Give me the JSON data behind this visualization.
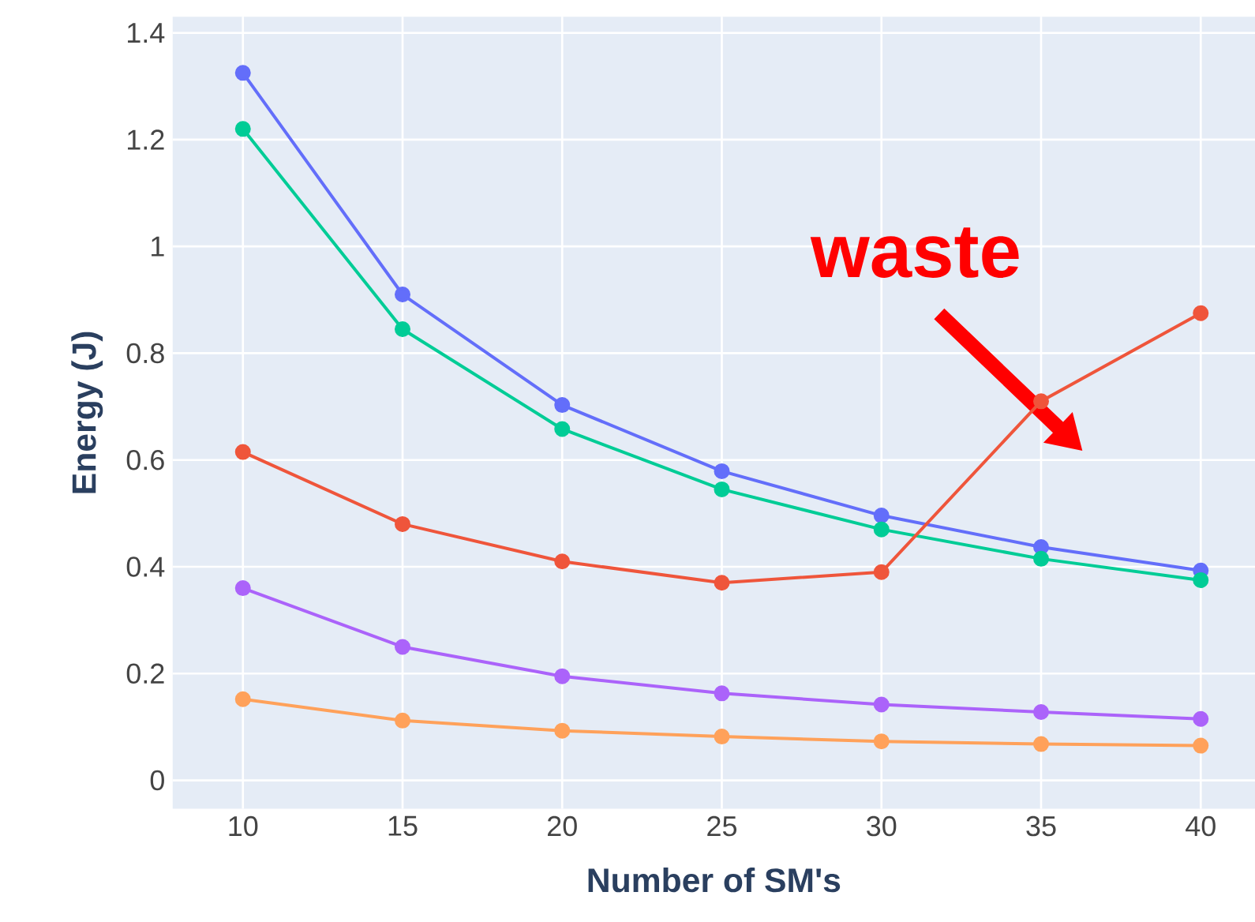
{
  "chart_data": {
    "type": "line",
    "xlabel": "Number of SM's",
    "ylabel": "Energy (J)",
    "x": [
      10,
      15,
      20,
      25,
      30,
      35,
      40
    ],
    "series": [
      {
        "color": "#636efa",
        "values": [
          1.325,
          0.91,
          0.703,
          0.579,
          0.496,
          0.437,
          0.393
        ]
      },
      {
        "color": "#00cc96",
        "values": [
          1.22,
          0.845,
          0.658,
          0.545,
          0.47,
          0.415,
          0.375
        ]
      },
      {
        "color": "#ef553b",
        "values": [
          0.615,
          0.48,
          0.41,
          0.37,
          0.39,
          0.71,
          0.875
        ]
      },
      {
        "color": "#ab63fa",
        "values": [
          0.36,
          0.25,
          0.195,
          0.163,
          0.142,
          0.128,
          0.115
        ]
      },
      {
        "color": "#ffa15a",
        "values": [
          0.152,
          0.112,
          0.093,
          0.082,
          0.073,
          0.068,
          0.065
        ]
      }
    ],
    "xlim": [
      7.8,
      41.7
    ],
    "ylim": [
      -0.053,
      1.43
    ],
    "xticks": [
      10,
      15,
      20,
      25,
      30,
      35,
      40
    ],
    "yticks": [
      0,
      0.2,
      0.4,
      0.6,
      0.8,
      1,
      1.2,
      1.4
    ],
    "grid": true,
    "marker": "circle",
    "line_style": "solid",
    "annotations": [
      "waste"
    ]
  }
}
